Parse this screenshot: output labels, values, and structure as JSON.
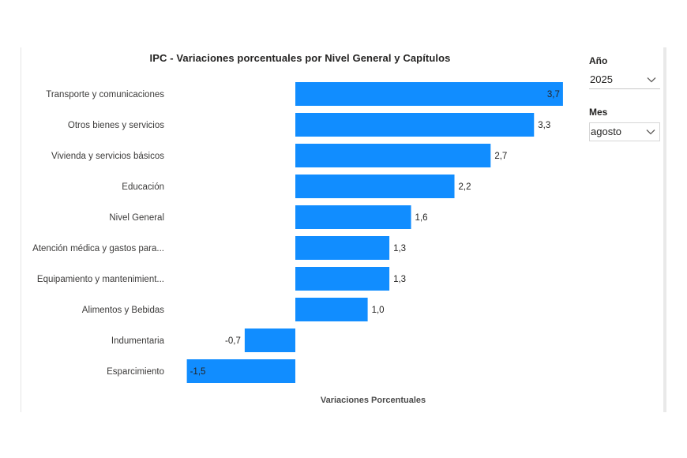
{
  "title": "IPC - Variaciones porcentuales por Nivel General y Capítulos",
  "slicers": {
    "year": {
      "label": "Año",
      "value": "2025",
      "icon": "chevron-down-icon"
    },
    "month": {
      "label": "Mes",
      "value": "agosto",
      "icon": "chevron-down-icon"
    }
  },
  "colors": {
    "bar": "#118DFF",
    "text": "#252423"
  },
  "chart_data": {
    "type": "bar",
    "orientation": "horizontal",
    "title": "IPC - Variaciones porcentuales por Nivel General y Capítulos",
    "xlabel": "Variaciones Porcentuales",
    "ylabel": "",
    "xlim": [
      -1.5,
      3.7
    ],
    "grid": false,
    "categories": [
      "Transporte y comunicaciones",
      "Otros bienes y servicios",
      "Vivienda y servicios básicos",
      "Educación",
      "Nivel General",
      "Atención médica y gastos para...",
      "Equipamiento y mantenimient...",
      "Alimentos y Bebidas",
      "Indumentaria",
      "Esparcimiento"
    ],
    "values": [
      3.7,
      3.3,
      2.7,
      2.2,
      1.6,
      1.3,
      1.3,
      1.0,
      -0.7,
      -1.5
    ],
    "value_labels": [
      "3,7",
      "3,3",
      "2,7",
      "2,2",
      "1,6",
      "1,3",
      "1,3",
      "1,0",
      "-0,7",
      "-1,5"
    ]
  }
}
